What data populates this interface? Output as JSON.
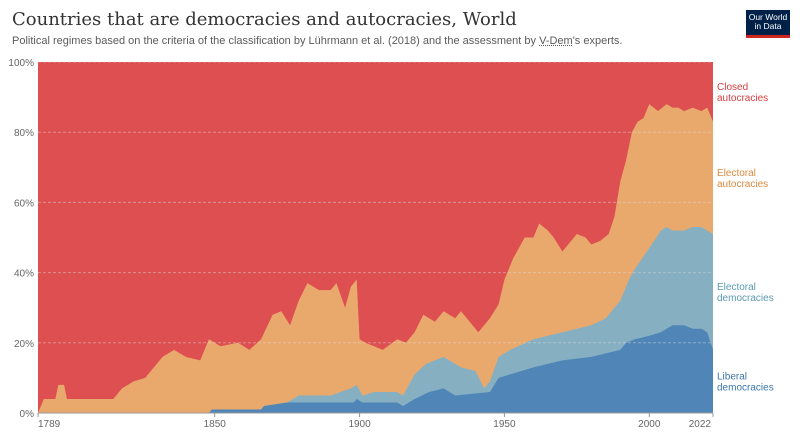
{
  "title": "Countries that are democracies and autocracies, World",
  "subtitle": {
    "before": "Political regimes based on the criteria of the classification by Lührmann et al. (2018) and the assessment by ",
    "link": "V-Dem",
    "after": "'s experts."
  },
  "logo": {
    "line1": "Our World",
    "line2": "in Data"
  },
  "colors": {
    "closed_autocracies": "#dd4f50",
    "electoral_autocracies": "#eaa96c",
    "electoral_democracies": "#86b0c2",
    "liberal_democracies": "#4f85b7",
    "closed_label": "#d73d3e",
    "electoral_aut_label": "#dd8a40",
    "electoral_dem_label": "#5a9ab2",
    "liberal_label": "#3b76ad"
  },
  "chart_data": {
    "type": "area",
    "stacked": true,
    "normalized": true,
    "xlim": [
      1789,
      2022
    ],
    "ylim": [
      0,
      100
    ],
    "x_ticks": [
      1789,
      1850,
      1900,
      1950,
      2000,
      2022
    ],
    "y_ticks": [
      "0%",
      "20%",
      "40%",
      "60%",
      "80%",
      "100%"
    ],
    "grid": "horizontal dashed",
    "legend": "right, inline labels",
    "series": [
      {
        "name": "Liberal democracies",
        "label_lines": [
          "Liberal",
          "democracies"
        ],
        "color_key": "liberal_democracies",
        "label_color_key": "liberal_label",
        "points": [
          [
            1789,
            0
          ],
          [
            1848,
            0
          ],
          [
            1849,
            1
          ],
          [
            1866,
            1
          ],
          [
            1867,
            2
          ],
          [
            1875,
            3
          ],
          [
            1898,
            3
          ],
          [
            1899,
            4
          ],
          [
            1901,
            3
          ],
          [
            1903,
            3
          ],
          [
            1913,
            3
          ],
          [
            1915,
            2
          ],
          [
            1919,
            4
          ],
          [
            1924,
            6
          ],
          [
            1929,
            7
          ],
          [
            1933,
            5
          ],
          [
            1945,
            6
          ],
          [
            1948,
            10
          ],
          [
            1952,
            11
          ],
          [
            1960,
            13
          ],
          [
            1970,
            15
          ],
          [
            1980,
            16
          ],
          [
            1990,
            18
          ],
          [
            1992,
            20
          ],
          [
            1995,
            21
          ],
          [
            2000,
            22
          ],
          [
            2004,
            23
          ],
          [
            2008,
            25
          ],
          [
            2012,
            25
          ],
          [
            2015,
            24
          ],
          [
            2018,
            24
          ],
          [
            2020,
            23
          ],
          [
            2022,
            18
          ]
        ]
      },
      {
        "name": "Electoral democracies",
        "label_lines": [
          "Electoral",
          "democracies"
        ],
        "color_key": "electoral_democracies",
        "label_color_key": "electoral_dem_label",
        "points": [
          [
            1789,
            0
          ],
          [
            1848,
            0
          ],
          [
            1849,
            1
          ],
          [
            1866,
            1
          ],
          [
            1867,
            2
          ],
          [
            1875,
            3
          ],
          [
            1879,
            5
          ],
          [
            1890,
            5
          ],
          [
            1897,
            7
          ],
          [
            1899,
            8
          ],
          [
            1901,
            5
          ],
          [
            1905,
            6
          ],
          [
            1913,
            6
          ],
          [
            1915,
            5
          ],
          [
            1919,
            11
          ],
          [
            1923,
            14
          ],
          [
            1929,
            16
          ],
          [
            1935,
            13
          ],
          [
            1940,
            12
          ],
          [
            1943,
            7
          ],
          [
            1945,
            9
          ],
          [
            1948,
            16
          ],
          [
            1952,
            18
          ],
          [
            1960,
            21
          ],
          [
            1970,
            23
          ],
          [
            1980,
            25
          ],
          [
            1985,
            27
          ],
          [
            1990,
            32
          ],
          [
            1993,
            38
          ],
          [
            1995,
            41
          ],
          [
            2000,
            47
          ],
          [
            2004,
            52
          ],
          [
            2006,
            53
          ],
          [
            2008,
            52
          ],
          [
            2010,
            52
          ],
          [
            2012,
            52
          ],
          [
            2015,
            53
          ],
          [
            2018,
            53
          ],
          [
            2020,
            52
          ],
          [
            2022,
            51
          ]
        ]
      },
      {
        "name": "Electoral autocracies",
        "label_lines": [
          "Electoral",
          "autocracies"
        ],
        "color_key": "electoral_autocracies",
        "label_color_key": "electoral_aut_label",
        "points": [
          [
            1789,
            0
          ],
          [
            1791,
            4
          ],
          [
            1795,
            4
          ],
          [
            1796,
            8
          ],
          [
            1798,
            8
          ],
          [
            1799,
            4
          ],
          [
            1810,
            4
          ],
          [
            1815,
            4
          ],
          [
            1818,
            7
          ],
          [
            1822,
            9
          ],
          [
            1826,
            10
          ],
          [
            1828,
            12
          ],
          [
            1830,
            14
          ],
          [
            1832,
            16
          ],
          [
            1836,
            18
          ],
          [
            1840,
            16
          ],
          [
            1845,
            15
          ],
          [
            1848,
            21
          ],
          [
            1852,
            19
          ],
          [
            1858,
            20
          ],
          [
            1862,
            18
          ],
          [
            1866,
            21
          ],
          [
            1870,
            28
          ],
          [
            1873,
            29
          ],
          [
            1876,
            25
          ],
          [
            1879,
            32
          ],
          [
            1882,
            37
          ],
          [
            1886,
            35
          ],
          [
            1890,
            35
          ],
          [
            1892,
            37
          ],
          [
            1895,
            30
          ],
          [
            1897,
            36
          ],
          [
            1899,
            38
          ],
          [
            1900,
            21
          ],
          [
            1902,
            20
          ],
          [
            1905,
            19
          ],
          [
            1908,
            18
          ],
          [
            1913,
            21
          ],
          [
            1916,
            20
          ],
          [
            1919,
            23
          ],
          [
            1922,
            28
          ],
          [
            1926,
            26
          ],
          [
            1929,
            29
          ],
          [
            1933,
            27
          ],
          [
            1935,
            29
          ],
          [
            1938,
            26
          ],
          [
            1941,
            23
          ],
          [
            1945,
            27
          ],
          [
            1948,
            31
          ],
          [
            1950,
            38
          ],
          [
            1953,
            44
          ],
          [
            1957,
            50
          ],
          [
            1960,
            50
          ],
          [
            1962,
            54
          ],
          [
            1965,
            52
          ],
          [
            1967,
            50
          ],
          [
            1970,
            46
          ],
          [
            1975,
            51
          ],
          [
            1978,
            50
          ],
          [
            1980,
            48
          ],
          [
            1983,
            49
          ],
          [
            1986,
            51
          ],
          [
            1988,
            56
          ],
          [
            1990,
            66
          ],
          [
            1992,
            72
          ],
          [
            1994,
            80
          ],
          [
            1996,
            83
          ],
          [
            1998,
            84
          ],
          [
            2000,
            88
          ],
          [
            2003,
            86
          ],
          [
            2006,
            88
          ],
          [
            2008,
            87
          ],
          [
            2010,
            87
          ],
          [
            2012,
            86
          ],
          [
            2015,
            87
          ],
          [
            2018,
            86
          ],
          [
            2020,
            87
          ],
          [
            2022,
            83
          ]
        ]
      },
      {
        "name": "Closed autocracies",
        "label_lines": [
          "Closed",
          "autocracies"
        ],
        "color_key": "closed_autocracies",
        "label_color_key": "closed_label",
        "points": [
          [
            1789,
            100
          ],
          [
            2022,
            100
          ]
        ]
      }
    ]
  }
}
